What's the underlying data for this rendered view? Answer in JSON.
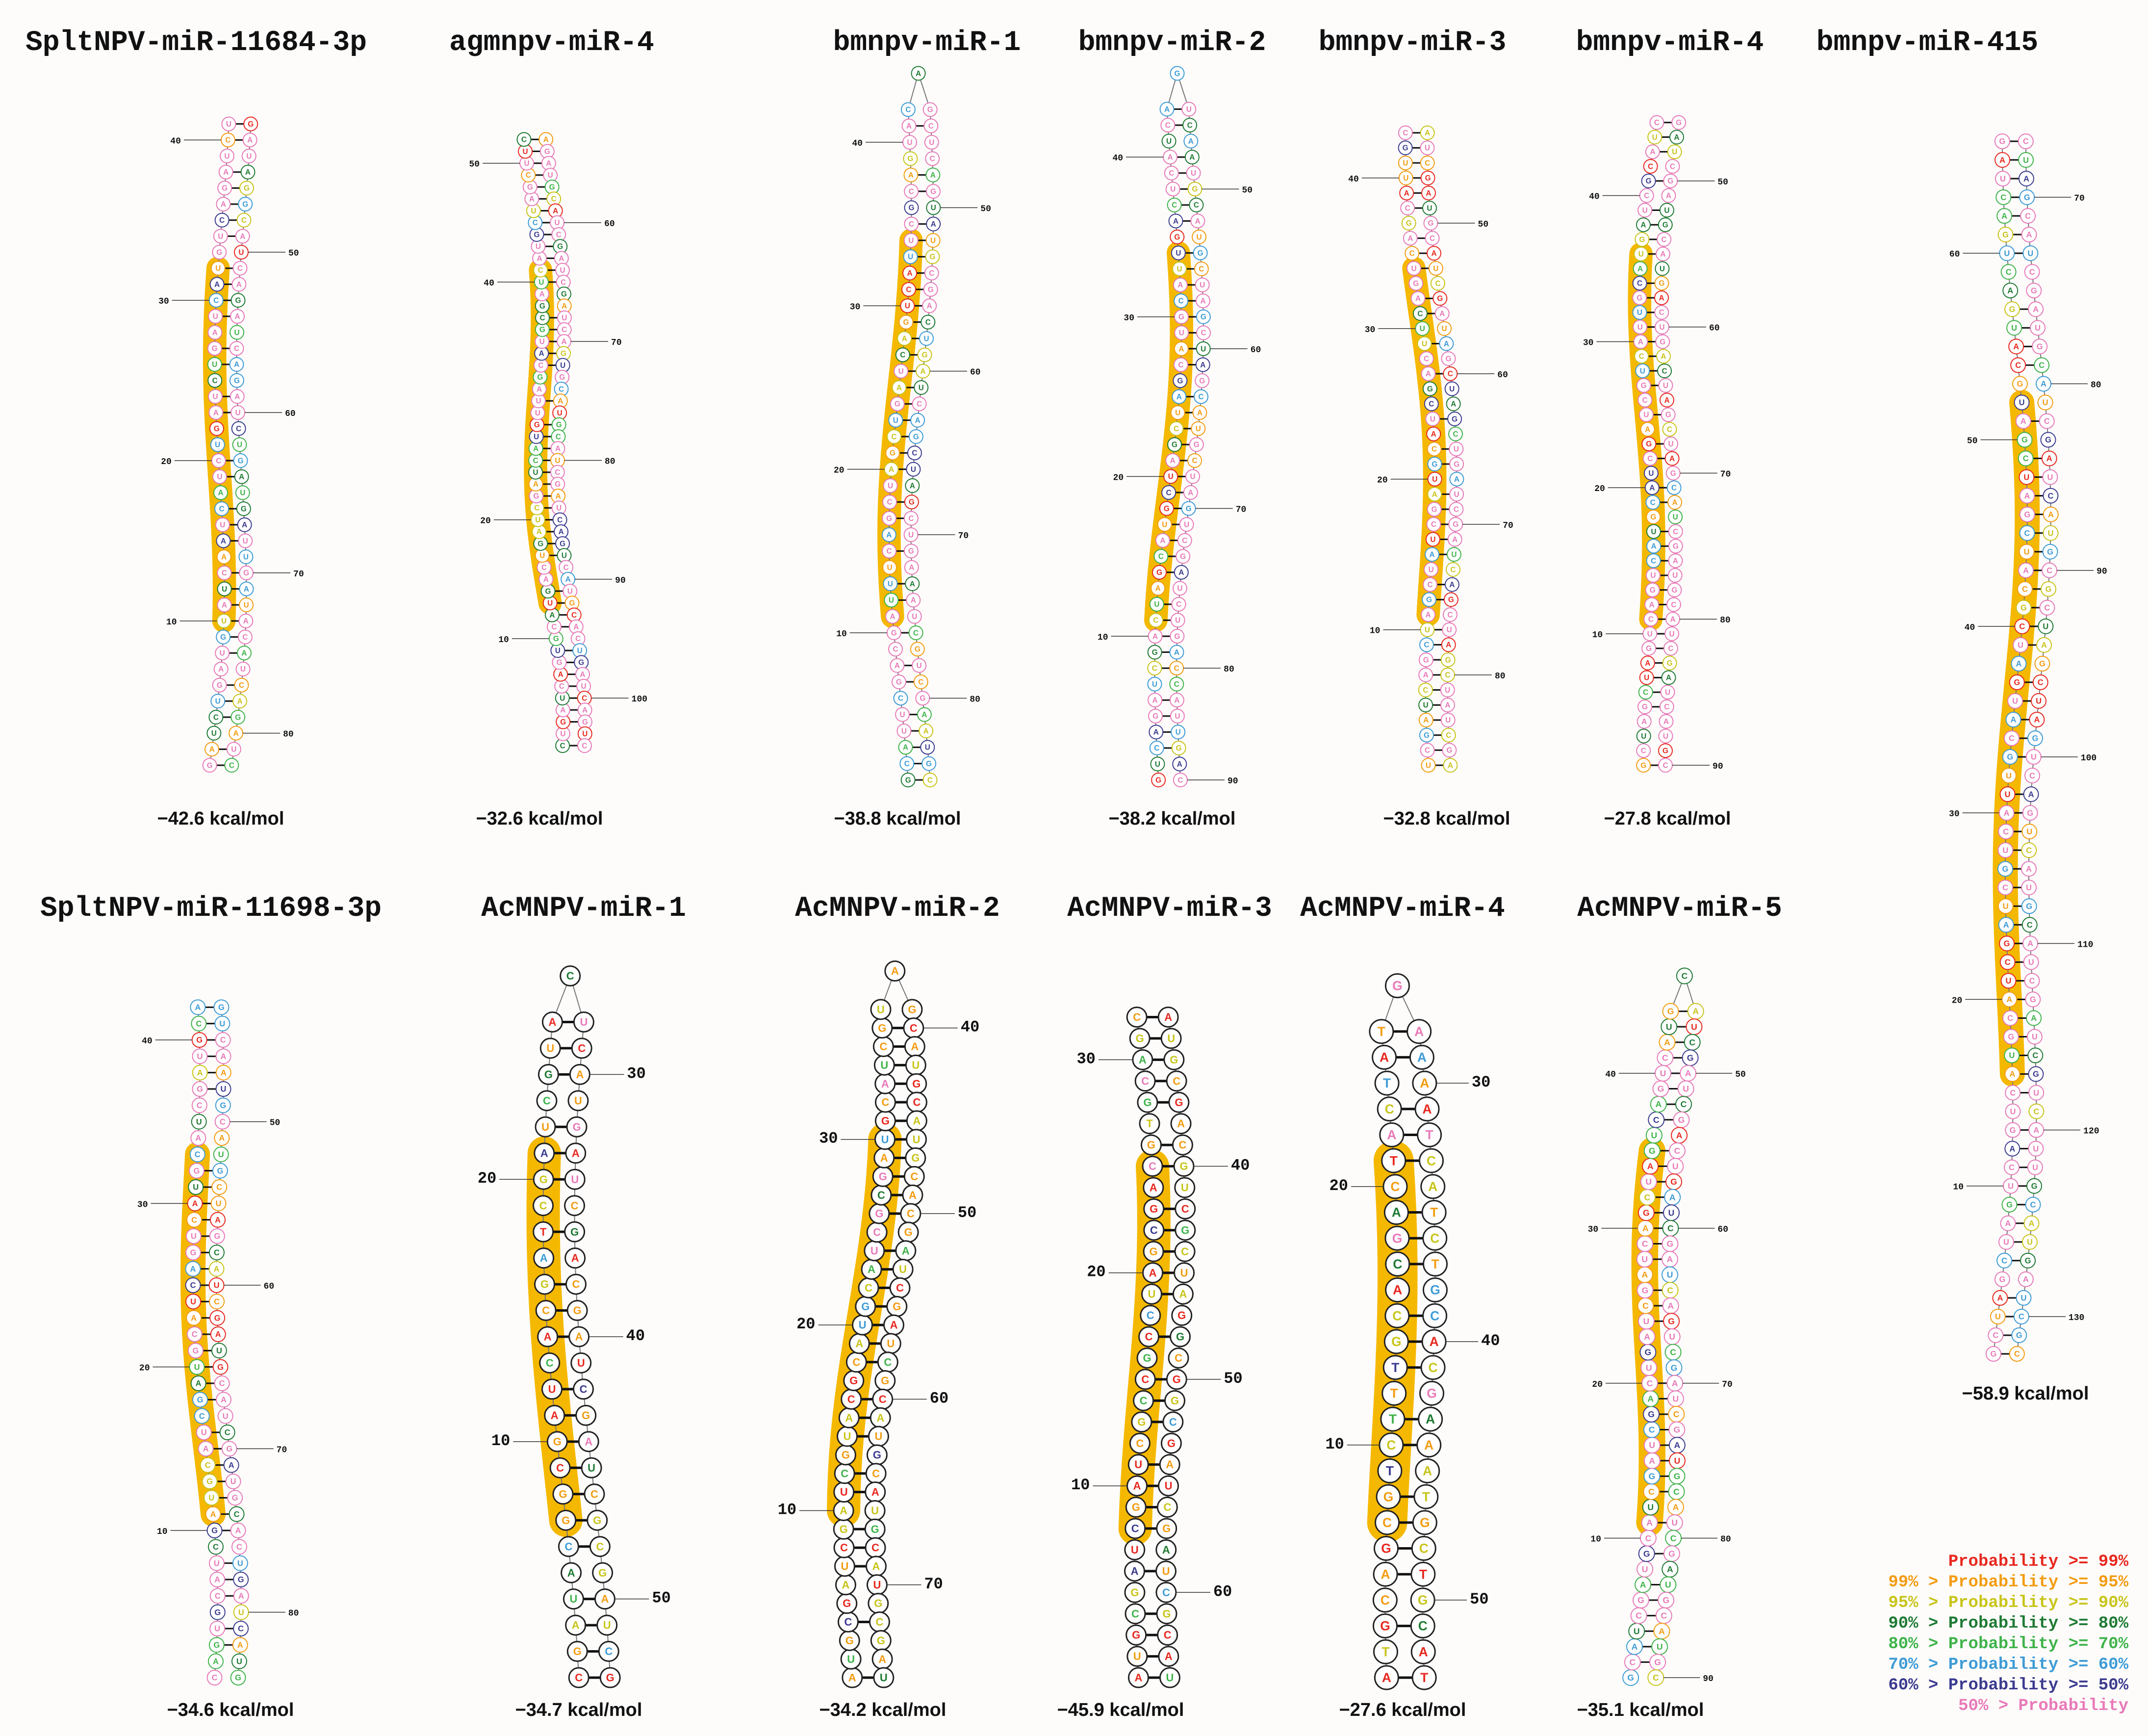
{
  "panels": [
    {
      "title": "SpltNPV-miR-11684-3p",
      "energy": "−42.6 kcal/mol",
      "seq": "GAUCUGAUGUAUCAAUCAUCUGAUCUGAUCAUGUCAGAUCUGAUAGGCAUCAGAUCAGAUCUGAUGAUUGAUACAUCAGAUC",
      "labels": [
        "10",
        "20",
        "30",
        "40",
        "50",
        "60",
        "70",
        "80"
      ]
    },
    {
      "title": "agmnpv-miR-4",
      "energy": "−32.6 kcal/mol",
      "seq": "CUGAUCAGUGCAUGACUGAUCGAUCAUGUUAGCAUGCGAUCAUGCUAGCUUCAGAUGCAUCGAUCGAUCAGUGCAUGCAUCGAUCAGUCAUGCACUGAUCAGUC",
      "labels": [
        "10",
        "20",
        "40",
        "50",
        "60",
        "70",
        "80",
        "90",
        "100"
      ]
    },
    {
      "title": "bmnpv-miR-1",
      "energy": "−38.8 kcal/mol",
      "seq": "GCAUUCGACGAUUUCAGCUAGCUGAUCAGUCAUUCGCAGUACAGCUCAGUAUGCGACUGAUCAGCUAGCUGAAAUCGUCGAAUGC",
      "labels": [
        "10",
        "20",
        "30",
        "40",
        "50",
        "60",
        "70",
        "80"
      ]
    },
    {
      "title": "bmnpv-miR-2",
      "energy": "−38.2 kcal/mol",
      "seq": "GUCAGAUCGACUAGCAUGCUAGCUAGCAUGCAUUGACUCAUCAGUCAAUGCAUGCUAGCUAGCAUGCUAGUCGAUCUGACCAUUGAC",
      "labels": [
        "10",
        "20",
        "30",
        "40",
        "50",
        "60",
        "70",
        "80",
        "90"
      ]
    },
    {
      "title": "bmnpv-miR-3",
      "energy": "−32.8 kcal/mol",
      "seq": "UCGAUCAGCUAGCUAUCGAUGCAUCGACUUCAGUCAGCAUUGCAUCGAUGCAUCGAUAGCUAGCUGAUCGAUCAGCUAGCUAUCGA",
      "labels": [
        "10",
        "20",
        "30",
        "40",
        "50",
        "60",
        "70",
        "80"
      ]
    },
    {
      "title": "bmnpv-miR-4",
      "energy": "−27.8 kcal/mol",
      "seq": "GCUAGCUAGUCAGUCAUGCAUCGAUCGUCAUUGCAUGAUCGCAUCGAUCGAUGCAUGACUGACUAGCUAGCAUCGAUGCAUCGAUCAUGC",
      "labels": [
        "10",
        "20",
        "30",
        "40",
        "50",
        "60",
        "70",
        "80",
        "90"
      ]
    },
    {
      "title": "bmnpv-miR-415",
      "energy": "−58.9 kcal/mol",
      "seq": "GCUAGCUAGUCAGUCAUGCAUCGAUCGUCAUUGCAUGAUCGCAUCGAUCGAUGCAUGACUGACUAGCUAGCAUCGAUGCAUCGAUCAUGCGCUAGCUAGUCAGUCAUGCAUCGAUCGUCAUUGCAUGAUCGC",
      "labels": [
        "10",
        "20",
        "30",
        "40",
        "50",
        "60",
        "70",
        "80",
        "90",
        "100",
        "110",
        "120",
        "130"
      ]
    },
    {
      "title": "SpltNPV-miR-11698-3p",
      "energy": "−34.6 kcal/mol",
      "seq": "CAGUGCAUCGAUGCAUCGAUGCAUCAGUCAUGCAUCGAUGCAGUCAAUGCAUGCUAGCAUCGAUGCAUCGAUGCACUGAUCAUG",
      "labels": [
        "10",
        "20",
        "30",
        "40",
        "50",
        "60",
        "70",
        "80"
      ]
    },
    {
      "title": "AcMNPV-miR-1",
      "energy": "−34.7 kcal/mol",
      "seq": "CGAUACGGCGAUCACGATCGAUCGUACUCAUGAUCGACGAUCGAUCGCGAUCG",
      "labels": [
        "10",
        "20",
        "30",
        "40",
        "50"
      ]
    },
    {
      "title": "AcMNPV-miR-2",
      "energy": "−34.2 kcal/mol",
      "seq": "AUGCGAUCGAUCGUACGCAUGCAUCGCGAUGCAUCGUAGCAUGCAUGCACGAUCGAUCGCAUGCAUGCAUGCGAU",
      "labels": [
        "10",
        "20",
        "30",
        "40",
        "50",
        "60",
        "70"
      ]
    },
    {
      "title": "AcMNPV-miR-3",
      "energy": "−45.9 kcal/mol",
      "seq": "AUGCGAUCGAUCGCCGCCUAGCGACGTGCAGCAUGCGACGUCGCUAGGCGGCGAUCGAUCGCAU",
      "labels": [
        "10",
        "20",
        "30",
        "40",
        "50",
        "60"
      ]
    },
    {
      "title": "AcMNPV-miR-4",
      "energy": "−27.6 kcal/mol",
      "seq": "ATGCAGCGTCTTTGCACGACTACTATGAAAATCATCTGCACGAAATGCTGCAT",
      "labels": [
        "10",
        "20",
        "30",
        "40",
        "50"
      ]
    },
    {
      "title": "AcMNPV-miR-5",
      "energy": "−35.1 kcal/mol",
      "seq": "GCAUCGAUGCAUCGAUCGACUGAUCGAUCAGCUAGUCAGUCAUGCAUCGAUCGACUGAUCGAUCAGUCGAUCGAUGCAUCGAUGCAUGC",
      "labels": [
        "10",
        "20",
        "30",
        "40",
        "50",
        "60",
        "70",
        "80",
        "90"
      ]
    }
  ],
  "legend": [
    {
      "label": "Probability >= 99%",
      "color": "#e8281f"
    },
    {
      "label": "99% > Probability >= 95%",
      "color": "#f39c12"
    },
    {
      "label": "95% > Probability >= 90%",
      "color": "#c8c41a"
    },
    {
      "label": "90% > Probability >= 80%",
      "color": "#1e7a33"
    },
    {
      "label": "80% > Probability >= 70%",
      "color": "#3fb34a"
    },
    {
      "label": "70% > Probability >= 60%",
      "color": "#3d9bd6"
    },
    {
      "label": "60% > Probability >= 50%",
      "color": "#3b3b8f"
    },
    {
      "label": "50% > Probability",
      "color": "#e87ab8"
    }
  ],
  "highlight_color": "#f5b800"
}
